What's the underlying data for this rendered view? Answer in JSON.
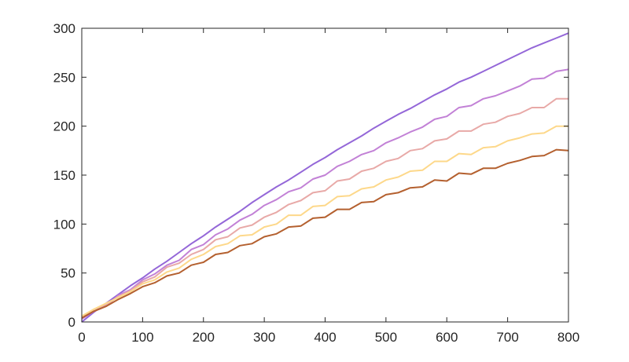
{
  "chart_data": {
    "type": "line",
    "title": "",
    "xlabel": "",
    "ylabel": "",
    "xlim": [
      0,
      800
    ],
    "ylim": [
      0,
      300
    ],
    "xticks": [
      "0",
      "100",
      "200",
      "300",
      "400",
      "500",
      "600",
      "700",
      "800"
    ],
    "yticks": [
      "0",
      "50",
      "100",
      "150",
      "200",
      "250",
      "300"
    ],
    "grid": false,
    "legend": "none",
    "x": [
      0,
      20,
      40,
      60,
      80,
      100,
      120,
      140,
      160,
      180,
      200,
      220,
      240,
      260,
      280,
      300,
      320,
      340,
      360,
      380,
      400,
      420,
      440,
      460,
      480,
      500,
      520,
      540,
      560,
      580,
      600,
      620,
      640,
      660,
      680,
      700,
      720,
      740,
      760,
      780,
      800
    ],
    "series": [
      {
        "color": "#9467d8",
        "values": [
          0,
          10,
          19,
          28,
          37,
          45,
          54,
          62,
          71,
          80,
          88,
          97,
          105,
          113,
          122,
          130,
          138,
          145,
          153,
          161,
          168,
          176,
          183,
          190,
          198,
          205,
          212,
          218,
          225,
          232,
          238,
          245,
          250,
          256,
          262,
          268,
          274,
          280,
          285,
          290,
          295
        ]
      },
      {
        "color": "#c281d6",
        "values": [
          3,
          11,
          16,
          27,
          33,
          43,
          49,
          58,
          63,
          74,
          79,
          89,
          95,
          104,
          110,
          119,
          125,
          133,
          137,
          146,
          150,
          159,
          164,
          171,
          175,
          183,
          188,
          194,
          199,
          207,
          210,
          219,
          221,
          228,
          231,
          236,
          241,
          248,
          249,
          256,
          258
        ]
      },
      {
        "color": "#e8a9a7",
        "values": [
          5,
          13,
          17,
          26,
          32,
          41,
          46,
          56,
          60,
          69,
          74,
          84,
          87,
          96,
          99,
          107,
          112,
          120,
          124,
          132,
          134,
          144,
          146,
          154,
          157,
          164,
          167,
          175,
          177,
          185,
          187,
          195,
          195,
          202,
          204,
          210,
          213,
          219,
          219,
          228,
          228
        ]
      },
      {
        "color": "#fdd88a",
        "values": [
          6,
          13,
          19,
          25,
          31,
          39,
          43,
          51,
          55,
          64,
          69,
          77,
          80,
          88,
          89,
          97,
          100,
          109,
          109,
          118,
          119,
          128,
          129,
          136,
          138,
          145,
          148,
          154,
          155,
          164,
          164,
          172,
          171,
          178,
          179,
          185,
          188,
          192,
          193,
          200,
          200
        ]
      },
      {
        "color": "#b4602f",
        "values": [
          4,
          11,
          16,
          23,
          29,
          36,
          40,
          47,
          50,
          58,
          61,
          69,
          71,
          78,
          80,
          87,
          90,
          97,
          98,
          106,
          107,
          115,
          115,
          122,
          123,
          130,
          132,
          137,
          138,
          145,
          144,
          152,
          151,
          157,
          157,
          162,
          165,
          169,
          170,
          176,
          175
        ]
      }
    ]
  }
}
